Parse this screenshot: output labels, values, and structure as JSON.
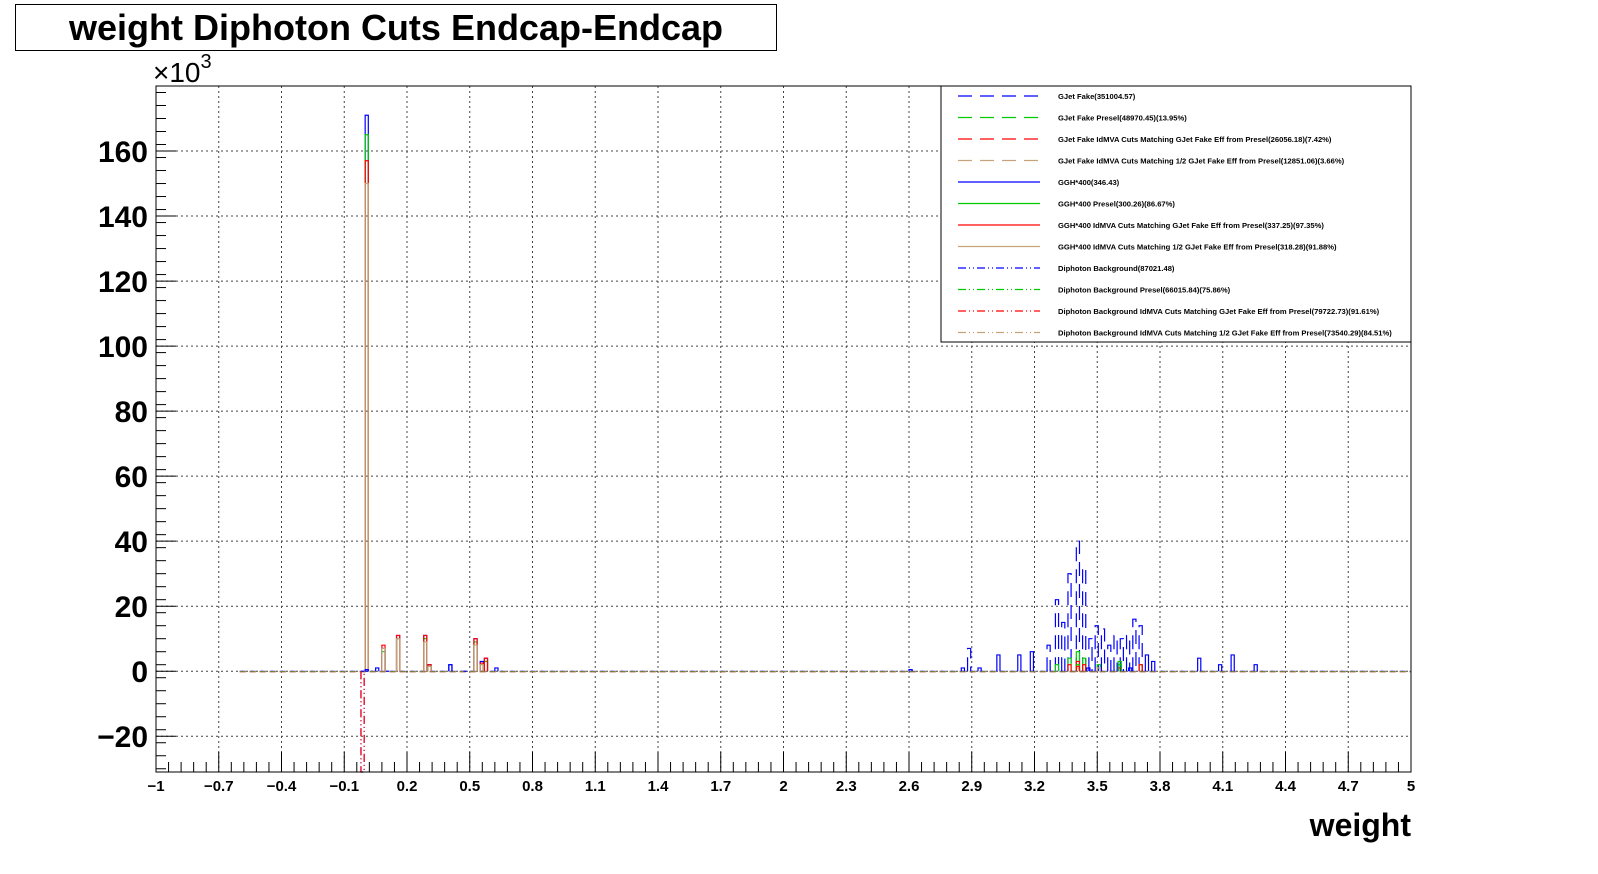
{
  "chart_data": {
    "type": "histogram",
    "title": "weight Diphoton Cuts Endcap-Endcap",
    "xlabel": "weight",
    "ylabel": "",
    "y_multiplier_label": "×10",
    "y_multiplier_exponent": "3",
    "xlim": [
      -1,
      5
    ],
    "ylim": [
      -31,
      180
    ],
    "x_tick_values": [
      -1,
      -0.7,
      -0.4,
      -0.1,
      0.2,
      0.5,
      0.8,
      1.1,
      1.4,
      1.7,
      2,
      2.3,
      2.6,
      2.9,
      3.2,
      3.5,
      3.8,
      4.1,
      4.4,
      4.7,
      5
    ],
    "x_tick_labels": [
      "−1",
      "−0.7",
      "−0.4",
      "−0.1",
      "0.2",
      "0.5",
      "0.8",
      "1.1",
      "1.4",
      "1.7",
      "2",
      "2.3",
      "2.6",
      "2.9",
      "3.2",
      "3.5",
      "3.8",
      "4.1",
      "4.4",
      "4.7",
      "5"
    ],
    "y_tick_values": [
      -20,
      0,
      20,
      40,
      60,
      80,
      100,
      120,
      140,
      160
    ],
    "y_tick_labels": [
      "−20",
      "0",
      "20",
      "40",
      "60",
      "80",
      "100",
      "120",
      "140",
      "160"
    ],
    "grid": true,
    "legend_position": "top-right",
    "series": [
      {
        "name": "GJet Fake(351004.57)",
        "color": "#0000ff",
        "dash": "long-dash",
        "points": [
          [
            -0.02,
            0
          ],
          [
            0.0,
            0
          ],
          [
            0.05,
            1
          ],
          [
            0.1,
            0
          ],
          [
            0.4,
            2
          ],
          [
            0.47,
            0
          ],
          [
            2.6,
            0.5
          ],
          [
            2.85,
            1
          ],
          [
            2.88,
            7
          ],
          [
            2.93,
            1
          ],
          [
            3.02,
            5
          ],
          [
            3.12,
            5
          ],
          [
            3.18,
            6
          ],
          [
            3.26,
            8
          ],
          [
            3.3,
            22
          ],
          [
            3.33,
            15
          ],
          [
            3.36,
            30
          ],
          [
            3.4,
            40
          ],
          [
            3.43,
            32
          ],
          [
            3.46,
            10
          ],
          [
            3.49,
            14
          ],
          [
            3.52,
            13
          ],
          [
            3.55,
            8
          ],
          [
            3.58,
            11
          ],
          [
            3.61,
            10
          ],
          [
            3.64,
            11
          ],
          [
            3.67,
            16
          ],
          [
            3.7,
            14
          ],
          [
            3.73,
            5
          ],
          [
            3.76,
            3
          ],
          [
            3.98,
            4
          ],
          [
            4.08,
            2
          ],
          [
            4.14,
            5
          ],
          [
            4.25,
            2
          ]
        ]
      },
      {
        "name": "GJet Fake Presel(48970.45)(13.95%)",
        "color": "#00cc00",
        "dash": "long-dash",
        "points": [
          [
            3.3,
            2
          ],
          [
            3.36,
            4
          ],
          [
            3.4,
            6
          ],
          [
            3.43,
            4
          ],
          [
            3.5,
            2
          ],
          [
            3.6,
            3
          ],
          [
            3.7,
            2
          ]
        ]
      },
      {
        "name": "GJet Fake IdMVA Cuts Matching GJet Fake Eff from Presel(26056.18)(7.42%)",
        "color": "#ff0000",
        "dash": "long-dash",
        "points": [
          [
            3.36,
            2
          ],
          [
            3.4,
            3
          ],
          [
            3.43,
            2
          ],
          [
            3.6,
            1
          ]
        ]
      },
      {
        "name": "GJet Fake IdMVA Cuts Matching 1/2 GJet Fake Eff from Presel(12851.06)(3.66%)",
        "color": "#c8a27a",
        "dash": "long-dash",
        "points": [
          [
            3.4,
            1
          ],
          [
            3.5,
            1
          ]
        ]
      },
      {
        "name": "GGH*400(346.43)",
        "color": "#0000ff",
        "dash": "solid",
        "points": [
          [
            0.0,
            171
          ],
          [
            0.08,
            7
          ],
          [
            0.15,
            11
          ],
          [
            0.28,
            11
          ],
          [
            0.4,
            2
          ],
          [
            0.52,
            10
          ],
          [
            0.57,
            4
          ],
          [
            0.62,
            1
          ]
        ]
      },
      {
        "name": "GGH*400 Presel(300.26)(86.67%)",
        "color": "#00cc00",
        "dash": "solid",
        "points": [
          [
            0.0,
            165
          ],
          [
            0.08,
            6
          ],
          [
            0.15,
            10
          ],
          [
            0.28,
            10
          ],
          [
            0.52,
            9
          ],
          [
            0.57,
            3
          ]
        ]
      },
      {
        "name": "GGH*400 IdMVA Cuts Matching GJet Fake Eff from Presel(337.25)(97.35%)",
        "color": "#ff0000",
        "dash": "solid",
        "points": [
          [
            0.0,
            157
          ],
          [
            0.08,
            8
          ],
          [
            0.15,
            11
          ],
          [
            0.28,
            11
          ],
          [
            0.52,
            10
          ],
          [
            0.57,
            4
          ]
        ]
      },
      {
        "name": "GGH*400 IdMVA Cuts Matching 1/2 GJet Fake Eff from Presel(318.28)(91.88%)",
        "color": "#c8a27a",
        "dash": "solid",
        "points": [
          [
            0.0,
            150
          ],
          [
            0.08,
            7
          ],
          [
            0.15,
            10
          ],
          [
            0.28,
            9
          ],
          [
            0.52,
            8
          ]
        ]
      },
      {
        "name": "Diphoton Background(87021.48)",
        "color": "#0000ff",
        "dash": "dash-dot-dot",
        "points": [
          [
            -0.02,
            -31
          ],
          [
            0.0,
            0.5
          ],
          [
            0.3,
            2
          ],
          [
            0.55,
            3
          ],
          [
            3.45,
            1
          ],
          [
            3.65,
            1
          ]
        ]
      },
      {
        "name": "Diphoton Background Presel(66015.84)(75.86%)",
        "color": "#00cc00",
        "dash": "dash-dot-dot",
        "points": [
          [
            0.3,
            1.5
          ],
          [
            0.55,
            2
          ],
          [
            3.4,
            2
          ],
          [
            3.6,
            2
          ]
        ]
      },
      {
        "name": "Diphoton Background IdMVA Cuts Matching GJet Fake Eff from Presel(79722.73)(91.61%)",
        "color": "#ff0000",
        "dash": "dash-dot-dot",
        "points": [
          [
            -0.02,
            -31
          ],
          [
            0.3,
            2
          ],
          [
            0.55,
            2.5
          ],
          [
            3.4,
            1.5
          ],
          [
            3.7,
            2
          ]
        ]
      },
      {
        "name": "Diphoton Background IdMVA Cuts Matching 1/2 GJet Fake Eff from Presel(73540.29)(84.51%)",
        "color": "#c8a27a",
        "dash": "dash-dot-dot",
        "points": [
          [
            0.3,
            1.5
          ],
          [
            0.55,
            2
          ],
          [
            3.5,
            1
          ]
        ]
      }
    ]
  }
}
